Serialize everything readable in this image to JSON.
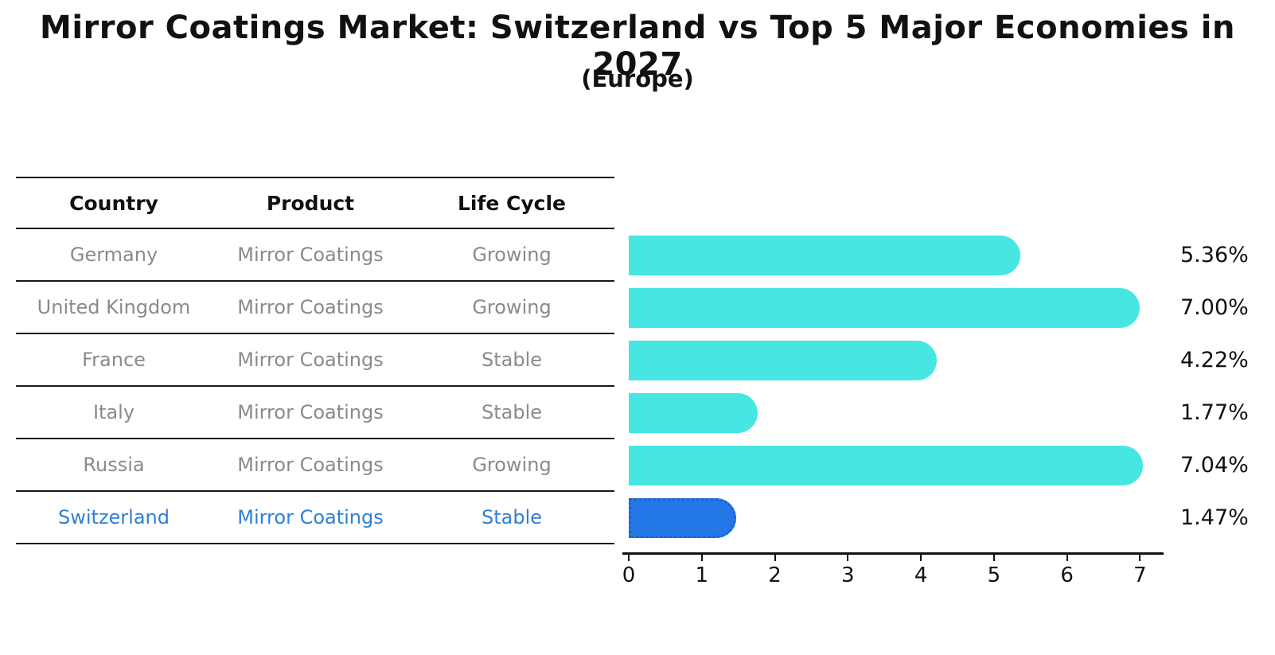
{
  "title": "Mirror Coatings Market: Switzerland vs Top 5 Major Economies in 2027",
  "subtitle": "(Europe)",
  "table": {
    "headers": [
      "Country",
      "Product",
      "Life Cycle"
    ],
    "rows": [
      {
        "country": "Germany",
        "product": "Mirror Coatings",
        "life_cycle": "Growing",
        "highlight": false
      },
      {
        "country": "United Kingdom",
        "product": "Mirror Coatings",
        "life_cycle": "Growing",
        "highlight": false
      },
      {
        "country": "France",
        "product": "Mirror Coatings",
        "life_cycle": "Stable",
        "highlight": false
      },
      {
        "country": "Italy",
        "product": "Mirror Coatings",
        "life_cycle": "Stable",
        "highlight": false
      },
      {
        "country": "Russia",
        "product": "Mirror Coatings",
        "life_cycle": "Growing",
        "highlight": false
      },
      {
        "country": "Switzerland",
        "product": "Mirror Coatings",
        "life_cycle": "Stable",
        "highlight": true
      }
    ]
  },
  "chart_data": {
    "type": "bar",
    "orientation": "horizontal",
    "title": "Mirror Coatings Market: Switzerland vs Top 5 Major Economies in 2027",
    "subtitle": "(Europe)",
    "categories": [
      "Germany",
      "United Kingdom",
      "France",
      "Italy",
      "Russia",
      "Switzerland"
    ],
    "values": [
      5.36,
      7.0,
      4.22,
      1.77,
      7.04,
      1.47
    ],
    "value_labels": [
      "5.36%",
      "7.00%",
      "4.22%",
      "1.77%",
      "7.04%",
      "1.47%"
    ],
    "unit": "%",
    "xlim": [
      0,
      7.3
    ],
    "xmax": 7.3,
    "x_ticks": [
      0,
      1,
      2,
      3,
      4,
      5,
      6,
      7
    ],
    "x_tick_labels": [
      "0",
      "1",
      "2",
      "3",
      "4",
      "5",
      "6",
      "7"
    ],
    "grid": false,
    "legend": false,
    "highlight_index": 5,
    "bar_color": "#47e6e2",
    "highlight_bar_color": "#2377e6",
    "highlight_border_color": "#1a63d4",
    "highlight_text_color": "#2e7fd6",
    "row_text_color": "#8a8a8a",
    "axis_color": "#111111"
  }
}
